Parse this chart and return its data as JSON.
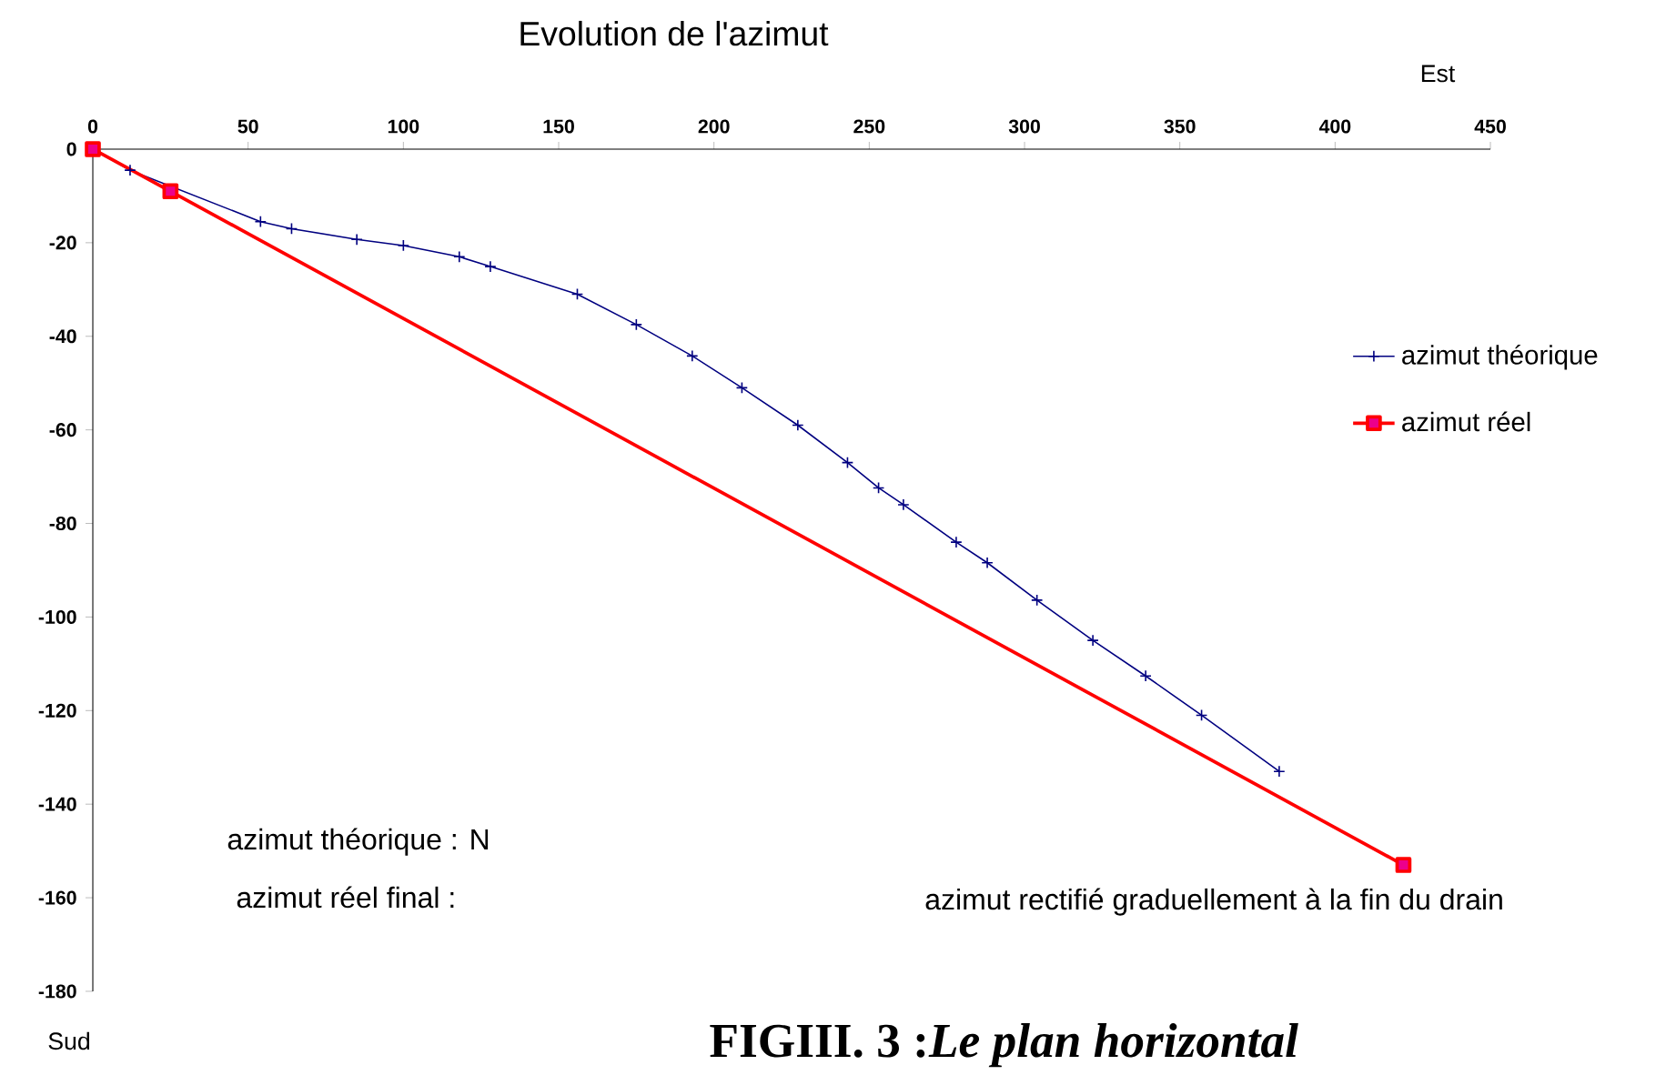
{
  "chart_data": {
    "type": "line",
    "title": "Evolution de l'azimut",
    "xlim": [
      0,
      450
    ],
    "xticks": [
      0,
      50,
      100,
      150,
      200,
      250,
      300,
      350,
      400,
      450
    ],
    "ylim": [
      -180,
      0
    ],
    "yticks": [
      0,
      -20,
      -40,
      -60,
      -80,
      -100,
      -120,
      -140,
      -160,
      -180
    ],
    "grid": false,
    "legend": "right",
    "series": [
      {
        "name": "azimut théorique",
        "color": "#000080",
        "marker": "cross",
        "x": [
          0,
          12,
          54,
          64,
          85,
          100,
          118,
          128,
          156,
          175,
          193,
          209,
          227,
          243,
          253,
          261,
          278,
          288,
          304,
          322,
          339,
          357,
          382
        ],
        "values": [
          0,
          -4.5,
          -15.5,
          -17,
          -19.3,
          -20.6,
          -23,
          -25.1,
          -31,
          -37.5,
          -44.2,
          -51,
          -59,
          -67,
          -72.4,
          -76,
          -84,
          -88.4,
          -96.4,
          -105,
          -112.6,
          -121,
          -133
        ]
      },
      {
        "name": "azimut réel",
        "color": "#ff0000",
        "marker": "square",
        "x": [
          0,
          25,
          422
        ],
        "values": [
          0,
          -9,
          -153
        ]
      }
    ],
    "annotations": [
      "Est",
      "Sud",
      "azimut théorique : N",
      "azimut réel final :",
      {
        "text": "azimut rectifié graduellement à la fin du drain",
        "x": 422,
        "y": -153
      },
      "FIGIII. 3 :*Le plan horizontal*"
    ]
  }
}
